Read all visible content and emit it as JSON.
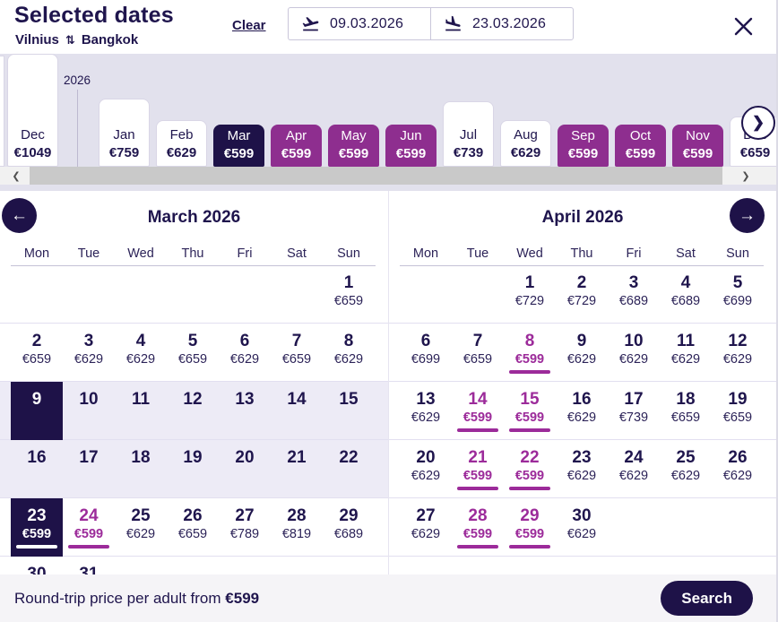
{
  "header": {
    "title": "Selected dates",
    "route": {
      "from": "Vilnius",
      "to": "Bangkok"
    },
    "clear_label": "Clear",
    "depart_date": "09.03.2026",
    "return_date": "23.03.2026"
  },
  "month_strip": {
    "year_label": "2026",
    "months": [
      {
        "name": "Dec",
        "price": "€1049",
        "value": 1049,
        "variant": "white"
      },
      {
        "name": "Jan",
        "price": "€759",
        "value": 759,
        "variant": "white"
      },
      {
        "name": "Feb",
        "price": "€629",
        "value": 629,
        "variant": "white"
      },
      {
        "name": "Mar",
        "price": "€599",
        "value": 599,
        "variant": "selected"
      },
      {
        "name": "Apr",
        "price": "€599",
        "value": 599,
        "variant": "purple"
      },
      {
        "name": "May",
        "price": "€599",
        "value": 599,
        "variant": "purple"
      },
      {
        "name": "Jun",
        "price": "€599",
        "value": 599,
        "variant": "purple"
      },
      {
        "name": "Jul",
        "price": "€739",
        "value": 739,
        "variant": "white"
      },
      {
        "name": "Aug",
        "price": "€629",
        "value": 629,
        "variant": "white"
      },
      {
        "name": "Sep",
        "price": "€599",
        "value": 599,
        "variant": "purple"
      },
      {
        "name": "Oct",
        "price": "€599",
        "value": 599,
        "variant": "purple"
      },
      {
        "name": "Nov",
        "price": "€599",
        "value": 599,
        "variant": "purple"
      },
      {
        "name": "Dec",
        "price": "€659",
        "value": 659,
        "variant": "white"
      }
    ]
  },
  "calendars": [
    {
      "id": "march",
      "title": "March 2026",
      "weekdays": [
        "Mon",
        "Tue",
        "Wed",
        "Thu",
        "Fri",
        "Sat",
        "Sun"
      ],
      "weeks": [
        {
          "cells": [
            null,
            null,
            null,
            null,
            null,
            null,
            {
              "d": 1,
              "p": "€659"
            }
          ]
        },
        {
          "cells": [
            {
              "d": 2,
              "p": "€659"
            },
            {
              "d": 3,
              "p": "€629"
            },
            {
              "d": 4,
              "p": "€629"
            },
            {
              "d": 5,
              "p": "€659"
            },
            {
              "d": 6,
              "p": "€629"
            },
            {
              "d": 7,
              "p": "€659"
            },
            {
              "d": 8,
              "p": "€629"
            }
          ]
        },
        {
          "rowbg": true,
          "cells": [
            {
              "d": 9,
              "state": "selected"
            },
            {
              "d": 10
            },
            {
              "d": 11
            },
            {
              "d": 12
            },
            {
              "d": 13
            },
            {
              "d": 14
            },
            {
              "d": 15
            }
          ]
        },
        {
          "rowbg": true,
          "cells": [
            {
              "d": 16
            },
            {
              "d": 17
            },
            {
              "d": 18
            },
            {
              "d": 19
            },
            {
              "d": 20
            },
            {
              "d": 21
            },
            {
              "d": 22
            }
          ]
        },
        {
          "cells": [
            {
              "d": 23,
              "p": "€599",
              "state": "selected",
              "underline": true
            },
            {
              "d": 24,
              "p": "€599",
              "state": "cheapest"
            },
            {
              "d": 25,
              "p": "€629"
            },
            {
              "d": 26,
              "p": "€659"
            },
            {
              "d": 27,
              "p": "€789"
            },
            {
              "d": 28,
              "p": "€819"
            },
            {
              "d": 29,
              "p": "€689"
            }
          ]
        },
        {
          "cells": [
            {
              "d": 30
            },
            {
              "d": 31
            },
            null,
            null,
            null,
            null,
            null
          ]
        }
      ]
    },
    {
      "id": "april",
      "title": "April 2026",
      "weekdays": [
        "Mon",
        "Tue",
        "Wed",
        "Thu",
        "Fri",
        "Sat",
        "Sun"
      ],
      "weeks": [
        {
          "cells": [
            null,
            null,
            {
              "d": 1,
              "p": "€729"
            },
            {
              "d": 2,
              "p": "€729"
            },
            {
              "d": 3,
              "p": "€689"
            },
            {
              "d": 4,
              "p": "€689"
            },
            {
              "d": 5,
              "p": "€699"
            }
          ]
        },
        {
          "cells": [
            {
              "d": 6,
              "p": "€699"
            },
            {
              "d": 7,
              "p": "€659"
            },
            {
              "d": 8,
              "p": "€599",
              "state": "cheapest"
            },
            {
              "d": 9,
              "p": "€629"
            },
            {
              "d": 10,
              "p": "€629"
            },
            {
              "d": 11,
              "p": "€629"
            },
            {
              "d": 12,
              "p": "€629"
            }
          ]
        },
        {
          "cells": [
            {
              "d": 13,
              "p": "€629"
            },
            {
              "d": 14,
              "p": "€599",
              "state": "cheapest"
            },
            {
              "d": 15,
              "p": "€599",
              "state": "cheapest"
            },
            {
              "d": 16,
              "p": "€629"
            },
            {
              "d": 17,
              "p": "€739"
            },
            {
              "d": 18,
              "p": "€659"
            },
            {
              "d": 19,
              "p": "€659"
            }
          ]
        },
        {
          "cells": [
            {
              "d": 20,
              "p": "€629"
            },
            {
              "d": 21,
              "p": "€599",
              "state": "cheapest"
            },
            {
              "d": 22,
              "p": "€599",
              "state": "cheapest"
            },
            {
              "d": 23,
              "p": "€629"
            },
            {
              "d": 24,
              "p": "€629"
            },
            {
              "d": 25,
              "p": "€629"
            },
            {
              "d": 26,
              "p": "€629"
            }
          ]
        },
        {
          "cells": [
            {
              "d": 27,
              "p": "€629"
            },
            {
              "d": 28,
              "p": "€599",
              "state": "cheapest"
            },
            {
              "d": 29,
              "p": "€599",
              "state": "cheapest"
            },
            {
              "d": 30,
              "p": "€629"
            },
            null,
            null,
            null
          ]
        }
      ]
    }
  ],
  "footer": {
    "summary_prefix": "Round-trip price per adult from ",
    "summary_price": "€599",
    "search_label": "Search"
  },
  "colors": {
    "navy": "#1e1248",
    "purple_card": "#8e2e8f",
    "cheapest_purple": "#9c2b9a",
    "strip_bg": "#e2e1ed",
    "range_bg": "#edebf6"
  }
}
